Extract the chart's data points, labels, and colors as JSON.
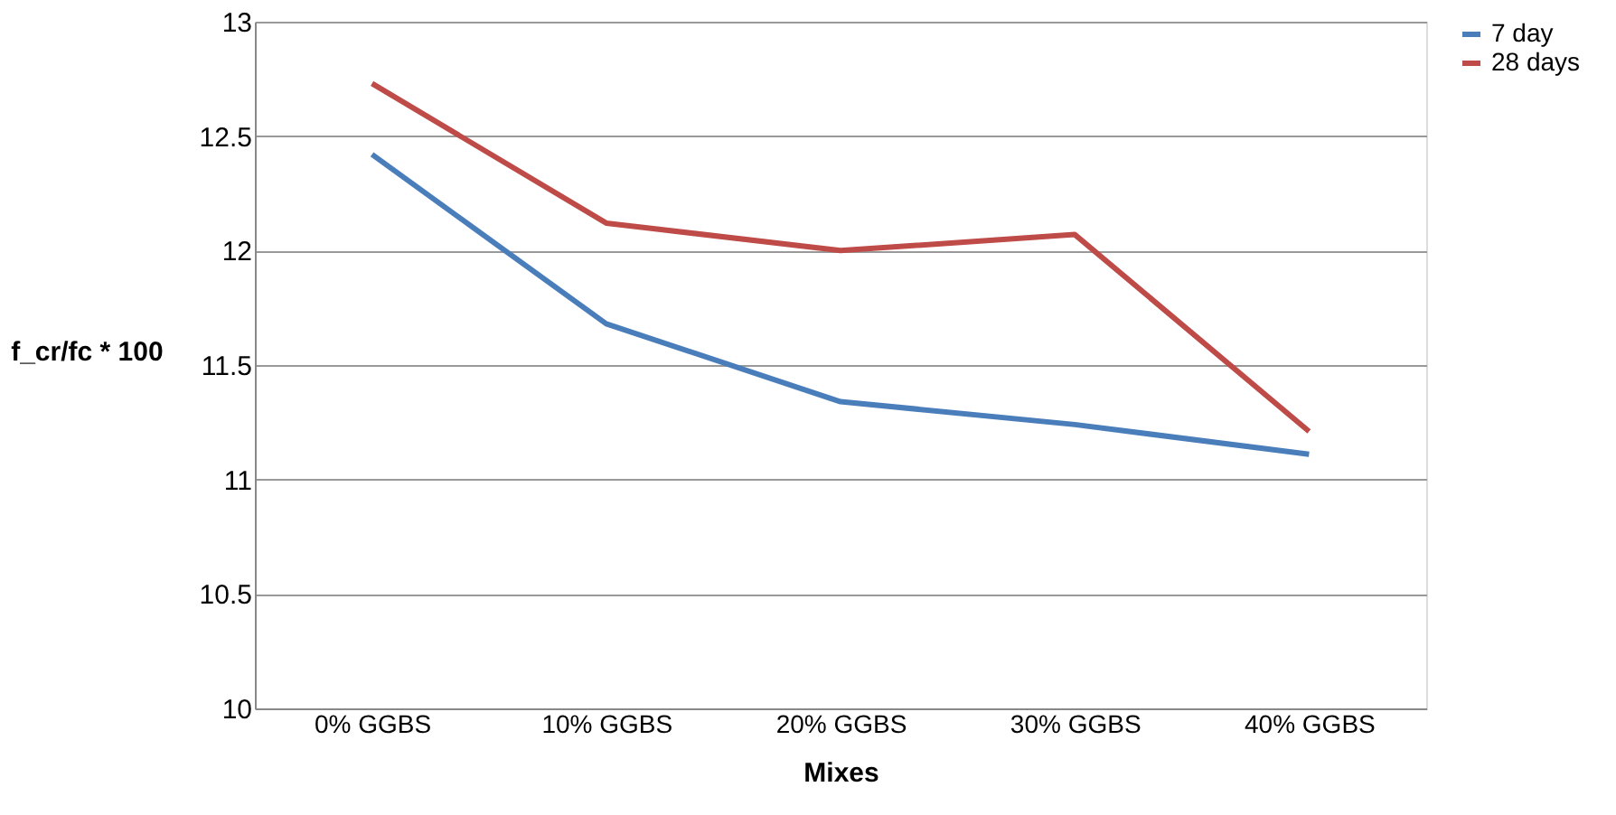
{
  "chart_data": {
    "type": "line",
    "xlabel": "Mixes",
    "ylabel": "f_cr/fc * 100",
    "categories": [
      "0% GGBS",
      "10% GGBS",
      "20% GGBS",
      "30% GGBS",
      "40% GGBS"
    ],
    "series": [
      {
        "name": "7 day",
        "color": "#4a7ebb",
        "values": [
          12.42,
          11.68,
          11.34,
          11.24,
          11.11
        ]
      },
      {
        "name": "28 days",
        "color": "#be4b48",
        "values": [
          12.73,
          12.12,
          12.0,
          12.07,
          11.21
        ]
      }
    ],
    "ylim": [
      10,
      13
    ],
    "yticks": [
      10,
      10.5,
      11,
      11.5,
      12,
      12.5,
      13
    ],
    "grid": "y",
    "legend": "right",
    "marker": "none",
    "line_style": "solid"
  }
}
